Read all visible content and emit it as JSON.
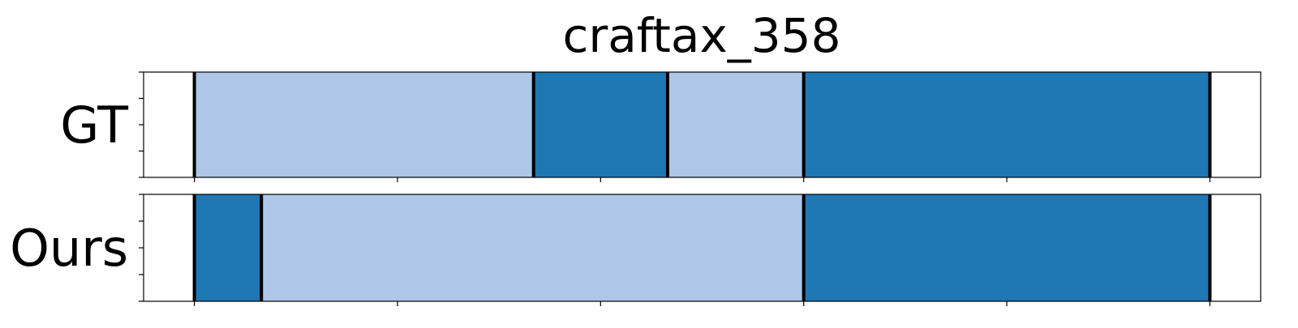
{
  "chart_data": {
    "type": "bar",
    "title": "craftax_358",
    "xlabel": "",
    "ylabel": "",
    "xlim": [
      -0.25,
      5.25
    ],
    "x_ticks": [
      0,
      1,
      2,
      3,
      4,
      5
    ],
    "tick_labels_shown": false,
    "grid": false,
    "legend": false,
    "colors": {
      "light": "#aec7e8",
      "dark": "#1f77b4",
      "boundary": "#000000"
    },
    "rows": [
      {
        "label": "GT",
        "segments": [
          {
            "start": 0.0,
            "end": 1.67,
            "color": "light"
          },
          {
            "start": 1.67,
            "end": 2.33,
            "color": "dark"
          },
          {
            "start": 2.33,
            "end": 3.0,
            "color": "light"
          },
          {
            "start": 3.0,
            "end": 5.0,
            "color": "dark"
          }
        ],
        "boundaries": [
          0.0,
          1.67,
          2.33,
          3.0,
          5.0
        ]
      },
      {
        "label": "Ours",
        "segments": [
          {
            "start": 0.0,
            "end": 0.33,
            "color": "dark"
          },
          {
            "start": 0.33,
            "end": 3.0,
            "color": "light"
          },
          {
            "start": 3.0,
            "end": 5.0,
            "color": "dark"
          }
        ],
        "boundaries": [
          0.0,
          0.33,
          3.0,
          5.0
        ]
      }
    ]
  }
}
